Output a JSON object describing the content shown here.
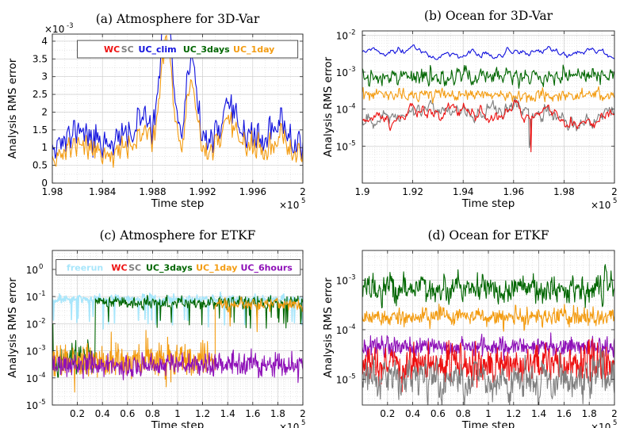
{
  "colors": {
    "WC": "#ee1111",
    "SC": "#7f7f7f",
    "UC_clim": "#1111dd",
    "UC_3days": "#006600",
    "UC_1day": "#f39c12",
    "UC_6hours": "#8e10b8",
    "freerun": "#a8e6fb"
  },
  "chart_data": [
    {
      "id": "a",
      "type": "line",
      "title": "(a) Atmosphere for 3D-Var",
      "xlabel": "Time step",
      "ylabel": "Analysis RMS error",
      "yscale": "linear",
      "x_multiplier": "×10",
      "x_multiplier_exp": "5",
      "y_multiplier": "×10",
      "y_multiplier_exp": "-3",
      "xlim": [
        1.98,
        2.0
      ],
      "ylim": [
        0,
        4.2
      ],
      "xticks": [
        1.98,
        1.984,
        1.988,
        1.992,
        1.996,
        2.0
      ],
      "xticklabels": [
        "1.98",
        "1.984",
        "1.988",
        "1.992",
        "1.996",
        "2"
      ],
      "yticks": [
        0,
        0.5,
        1,
        1.5,
        2,
        2.5,
        3,
        3.5,
        4
      ],
      "yticklabels": [
        "0",
        "0.5",
        "1",
        "1.5",
        "2",
        "2.5",
        "3",
        "3.5",
        "4"
      ],
      "grid": true,
      "legend": {
        "placement": "top-center",
        "entries": [
          "WC",
          "SC",
          "UC_clim",
          "UC_3days",
          "UC_1day"
        ],
        "box_x": [
          1.982,
          1.9996
        ],
        "box_y": [
          3.53,
          4.02
        ]
      },
      "series": [
        {
          "name": "UC_clim",
          "color_key": "UC_clim",
          "kind": "aa_clim"
        },
        {
          "name": "UC_1day",
          "color_key": "UC_1day",
          "kind": "aa_1day"
        }
      ]
    },
    {
      "id": "b",
      "type": "line",
      "title": "(b) Ocean for 3D-Var",
      "xlabel": "Time step",
      "ylabel": "Analysis RMS error",
      "yscale": "log",
      "x_multiplier": "×10",
      "x_multiplier_exp": "5",
      "xlim": [
        1.9,
        2.0
      ],
      "ylim": [
        1e-06,
        0.013
      ],
      "xticks": [
        1.9,
        1.92,
        1.94,
        1.96,
        1.98,
        2.0
      ],
      "xticklabels": [
        "1.9",
        "1.92",
        "1.94",
        "1.96",
        "1.98",
        "2"
      ],
      "yticks": [
        -5,
        -4,
        -3,
        -2
      ],
      "yticklabels": [
        "10",
        "10",
        "10",
        "10"
      ],
      "yticklabel_exps": [
        "-5",
        "-4",
        "-3",
        "-2"
      ],
      "grid": true,
      "series": [
        {
          "name": "UC_clim",
          "color_key": "UC_clim",
          "level": 0.003,
          "kind": "ob_clim"
        },
        {
          "name": "UC_3days",
          "color_key": "UC_3days",
          "level": 0.0008,
          "kind": "ob_3days"
        },
        {
          "name": "UC_1day",
          "color_key": "UC_1day",
          "level": 0.00024,
          "kind": "ob_1day"
        },
        {
          "name": "SC",
          "color_key": "SC",
          "level": 6e-05,
          "kind": "ob_sc"
        },
        {
          "name": "WC",
          "color_key": "WC",
          "level": 6e-05,
          "kind": "ob_wc"
        }
      ]
    },
    {
      "id": "c",
      "type": "line",
      "title": "(c) Atmosphere for ETKF",
      "xlabel": "Time step",
      "ylabel": "Analysis RMS error",
      "yscale": "log",
      "x_multiplier": "×10",
      "x_multiplier_exp": "5",
      "xlim": [
        0,
        2.0
      ],
      "ylim": [
        1e-05,
        5.0
      ],
      "xticks": [
        0.2,
        0.4,
        0.6,
        0.8,
        1.0,
        1.2,
        1.4,
        1.6,
        1.8,
        2.0
      ],
      "xticklabels": [
        "0.2",
        "0.4",
        "0.6",
        "0.8",
        "1",
        "1.2",
        "1.4",
        "1.6",
        "1.8",
        "2"
      ],
      "yticks": [
        -5,
        -4,
        -3,
        -2,
        -1,
        0
      ],
      "yticklabels": [
        "10",
        "10",
        "10",
        "10",
        "10",
        "10"
      ],
      "yticklabel_exps": [
        "-5",
        "-4",
        "-3",
        "-2",
        "-1",
        "0"
      ],
      "grid": true,
      "legend": {
        "placement": "top-center",
        "entries": [
          "freerun",
          "WC",
          "SC",
          "UC_3days",
          "UC_1day",
          "UC_6hours"
        ],
        "box_x": [
          0.03,
          1.98
        ],
        "box_y": [
          0.62,
          2.3
        ]
      },
      "series": [
        {
          "name": "freerun",
          "color_key": "freerun",
          "level": 0.08,
          "kind": "ec_free"
        },
        {
          "name": "UC_3days",
          "color_key": "UC_3days",
          "level": 0.06,
          "kind": "ec_3days"
        },
        {
          "name": "UC_1day",
          "color_key": "UC_1day",
          "level": 0.0004,
          "kind": "ec_1day"
        },
        {
          "name": "UC_6hours",
          "color_key": "UC_6hours",
          "level": 0.0003,
          "kind": "ec_6h"
        }
      ]
    },
    {
      "id": "d",
      "type": "line",
      "title": "(d) Ocean for ETKF",
      "xlabel": "Time step",
      "ylabel": "Analysis RMS error",
      "yscale": "log",
      "x_multiplier": "×10",
      "x_multiplier_exp": "5",
      "xlim": [
        0,
        2.0
      ],
      "ylim": [
        3e-06,
        0.004
      ],
      "xticks": [
        0.2,
        0.4,
        0.6,
        0.8,
        1.0,
        1.2,
        1.4,
        1.6,
        1.8,
        2.0
      ],
      "xticklabels": [
        "0.2",
        "0.4",
        "0.6",
        "0.8",
        "1",
        "1.2",
        "1.4",
        "1.6",
        "1.8",
        "2"
      ],
      "yticks": [
        -5,
        -4,
        -3
      ],
      "yticklabels": [
        "10",
        "10",
        "10"
      ],
      "yticklabel_exps": [
        "-5",
        "-4",
        "-3"
      ],
      "grid": true,
      "series": [
        {
          "name": "UC_3days",
          "color_key": "UC_3days",
          "level": 0.0007,
          "kind": "od_3days"
        },
        {
          "name": "UC_1day",
          "color_key": "UC_1day",
          "level": 0.00018,
          "kind": "od_1day"
        },
        {
          "name": "UC_6hours",
          "color_key": "UC_6hours",
          "level": 4.5e-05,
          "kind": "od_6h"
        },
        {
          "name": "WC",
          "color_key": "WC",
          "level": 2e-05,
          "kind": "od_wc"
        },
        {
          "name": "SC",
          "color_key": "SC",
          "level": 1e-05,
          "kind": "od_sc"
        }
      ]
    }
  ]
}
